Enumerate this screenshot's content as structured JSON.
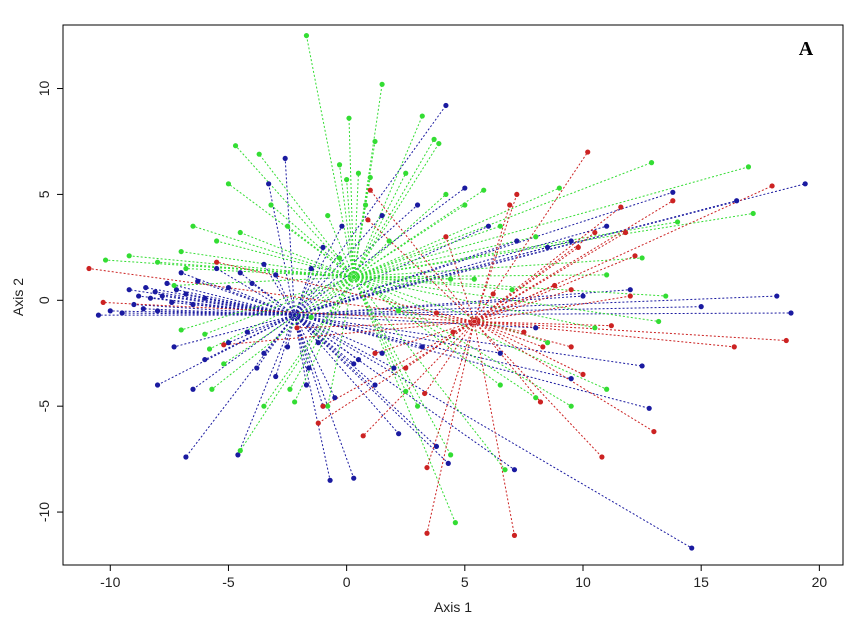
{
  "chart_data": {
    "type": "scatter",
    "panel_label": "A",
    "xlabel": "Axis 1",
    "ylabel": "Axis 2",
    "xlim": [
      -12,
      21
    ],
    "ylim": [
      -12.5,
      13
    ],
    "xticks": [
      -10,
      -5,
      0,
      5,
      10,
      15,
      20
    ],
    "yticks": [
      -10,
      -5,
      0,
      5,
      10
    ],
    "grid": false,
    "colors": {
      "blue": "#1a1aa0",
      "green": "#33dd33",
      "red": "#cc2222"
    },
    "series": [
      {
        "color_key": "blue",
        "centroid": [
          -2.2,
          -0.7
        ],
        "points": [
          [
            -10.5,
            -0.7
          ],
          [
            -10,
            -0.5
          ],
          [
            -9.5,
            -0.6
          ],
          [
            -9.2,
            0.5
          ],
          [
            -9,
            -0.2
          ],
          [
            -8.8,
            0.2
          ],
          [
            -8.6,
            -0.4
          ],
          [
            -8.5,
            0.6
          ],
          [
            -8.3,
            0.1
          ],
          [
            -8.1,
            0.4
          ],
          [
            -8,
            -0.5
          ],
          [
            -7.8,
            0.2
          ],
          [
            -7.6,
            0.8
          ],
          [
            -7.4,
            -0.1
          ],
          [
            -7.2,
            0.5
          ],
          [
            -7,
            1.3
          ],
          [
            -6.8,
            0.3
          ],
          [
            -6.5,
            -0.2
          ],
          [
            -6.3,
            0.9
          ],
          [
            -6,
            0.1
          ],
          [
            -5.5,
            1.5
          ],
          [
            -5,
            0.6
          ],
          [
            -4.5,
            1.3
          ],
          [
            -4,
            0.8
          ],
          [
            -3.5,
            1.7
          ],
          [
            -3,
            1.2
          ],
          [
            -2.6,
            6.7
          ],
          [
            -3.3,
            5.5
          ],
          [
            -1.5,
            1.5
          ],
          [
            -1,
            2.5
          ],
          [
            -0.2,
            3.5
          ],
          [
            1.5,
            4
          ],
          [
            3,
            4.5
          ],
          [
            4.2,
            9.2
          ],
          [
            5,
            5.3
          ],
          [
            6,
            3.5
          ],
          [
            7.2,
            2.8
          ],
          [
            8.5,
            2.5
          ],
          [
            9.5,
            2.8
          ],
          [
            11,
            3.5
          ],
          [
            13.8,
            5.1
          ],
          [
            16.5,
            4.7
          ],
          [
            19.4,
            5.5
          ],
          [
            18.2,
            0.2
          ],
          [
            18.8,
            -0.6
          ],
          [
            15,
            -0.3
          ],
          [
            12,
            0.5
          ],
          [
            10,
            0.2
          ],
          [
            8,
            -1.3
          ],
          [
            6.5,
            -2.5
          ],
          [
            12.5,
            -3.1
          ],
          [
            12.8,
            -5.1
          ],
          [
            9.5,
            -3.7
          ],
          [
            14.6,
            -11.7
          ],
          [
            7.1,
            -8
          ],
          [
            4.3,
            -7.7
          ],
          [
            3.8,
            -6.9
          ],
          [
            2.2,
            -6.3
          ],
          [
            1.2,
            -4
          ],
          [
            0.3,
            -3
          ],
          [
            -0.5,
            -4.6
          ],
          [
            -0.7,
            -8.5
          ],
          [
            0.3,
            -8.4
          ],
          [
            -1,
            -5
          ],
          [
            -1.7,
            -4
          ],
          [
            -3,
            -3.6
          ],
          [
            -3.8,
            -3.2
          ],
          [
            -4.6,
            -7.3
          ],
          [
            -6.8,
            -7.4
          ],
          [
            -6.5,
            -4.2
          ],
          [
            -8,
            -4
          ],
          [
            -7.3,
            -2.2
          ],
          [
            -6,
            -2.8
          ],
          [
            -5,
            -2
          ],
          [
            -4.2,
            -1.5
          ],
          [
            -3.5,
            -2.5
          ],
          [
            -1.6,
            -3.2
          ],
          [
            -2.5,
            -2.2
          ],
          [
            -1.2,
            -2
          ],
          [
            0.5,
            -2.8
          ],
          [
            1.5,
            -2.5
          ],
          [
            2,
            -3.2
          ],
          [
            3.2,
            -2.2
          ]
        ]
      },
      {
        "color_key": "green",
        "centroid": [
          0.3,
          1.1
        ],
        "points": [
          [
            -10.2,
            1.9
          ],
          [
            -9.2,
            2.1
          ],
          [
            -8,
            1.8
          ],
          [
            -7,
            2.3
          ],
          [
            -6.5,
            3.5
          ],
          [
            -5.5,
            2.8
          ],
          [
            -5,
            5.5
          ],
          [
            -4.7,
            7.3
          ],
          [
            -4.5,
            3.2
          ],
          [
            -3.7,
            6.9
          ],
          [
            -3.2,
            4.5
          ],
          [
            -2.5,
            3.5
          ],
          [
            -1.7,
            12.5
          ],
          [
            -0.8,
            4
          ],
          [
            -0.3,
            6.4
          ],
          [
            0,
            5.7
          ],
          [
            0.1,
            8.6
          ],
          [
            0.5,
            6
          ],
          [
            0.8,
            4.5
          ],
          [
            1,
            5.8
          ],
          [
            1.5,
            10.2
          ],
          [
            1.2,
            7.5
          ],
          [
            2.5,
            6
          ],
          [
            3.2,
            8.7
          ],
          [
            3.7,
            7.6
          ],
          [
            3.9,
            7.4
          ],
          [
            4.2,
            5
          ],
          [
            5,
            4.5
          ],
          [
            5.8,
            5.2
          ],
          [
            6.5,
            3.5
          ],
          [
            8,
            3
          ],
          [
            9,
            5.3
          ],
          [
            12.9,
            6.5
          ],
          [
            17,
            6.3
          ],
          [
            17.2,
            4.1
          ],
          [
            14,
            3.7
          ],
          [
            12.5,
            2
          ],
          [
            11,
            1.2
          ],
          [
            13.5,
            0.2
          ],
          [
            13.2,
            -1
          ],
          [
            10.5,
            -1.3
          ],
          [
            8.5,
            -2
          ],
          [
            11,
            -4.2
          ],
          [
            9.5,
            -5
          ],
          [
            8,
            -4.6
          ],
          [
            6.5,
            -4
          ],
          [
            6.7,
            -8
          ],
          [
            4.6,
            -10.5
          ],
          [
            4.4,
            -7.3
          ],
          [
            3,
            -5
          ],
          [
            2.5,
            -4.3
          ],
          [
            -0.8,
            -5
          ],
          [
            -2.4,
            -4.2
          ],
          [
            -2.2,
            -4.8
          ],
          [
            -3.5,
            -5
          ],
          [
            -4.5,
            -7.1
          ],
          [
            -5.7,
            -4.2
          ],
          [
            -5.2,
            -3
          ],
          [
            -5.8,
            -2.3
          ],
          [
            -6,
            -1.6
          ],
          [
            -7,
            -1.4
          ],
          [
            -7.3,
            0.7
          ],
          [
            -6.8,
            1.5
          ],
          [
            -1.5,
            -0.8
          ],
          [
            -0.3,
            2
          ],
          [
            1.8,
            2.8
          ],
          [
            2.2,
            -0.5
          ],
          [
            4.4,
            1
          ],
          [
            5.4,
            1
          ],
          [
            7,
            0.5
          ]
        ]
      },
      {
        "color_key": "red",
        "centroid": [
          5.4,
          -1.0
        ],
        "points": [
          [
            -10.9,
            1.5
          ],
          [
            -10.3,
            -0.1
          ],
          [
            -5.5,
            1.8
          ],
          [
            -5.2,
            -2.1
          ],
          [
            -2.1,
            -1.3
          ],
          [
            -1,
            -5
          ],
          [
            -1.2,
            -5.8
          ],
          [
            0.7,
            -6.4
          ],
          [
            1.2,
            -2.5
          ],
          [
            0.9,
            3.8
          ],
          [
            1,
            5.2
          ],
          [
            2.5,
            -3.2
          ],
          [
            3.3,
            -4.4
          ],
          [
            3.4,
            -7.9
          ],
          [
            3.4,
            -11
          ],
          [
            4.2,
            3
          ],
          [
            6.9,
            4.5
          ],
          [
            7.2,
            5
          ],
          [
            7.1,
            -11.1
          ],
          [
            8.3,
            -2.2
          ],
          [
            8.2,
            -4.8
          ],
          [
            9.5,
            0.5
          ],
          [
            9.8,
            2.5
          ],
          [
            10.2,
            7
          ],
          [
            10.5,
            3.2
          ],
          [
            10.8,
            -7.4
          ],
          [
            11.6,
            4.4
          ],
          [
            11.8,
            3.2
          ],
          [
            12.2,
            2.1
          ],
          [
            12,
            0.2
          ],
          [
            13,
            -6.2
          ],
          [
            13.8,
            4.7
          ],
          [
            16.4,
            -2.2
          ],
          [
            18.6,
            -1.9
          ],
          [
            18,
            5.4
          ],
          [
            9.5,
            -2.2
          ],
          [
            10,
            -3.5
          ],
          [
            6.2,
            0.3
          ],
          [
            7.5,
            -1.5
          ],
          [
            8.8,
            0.7
          ],
          [
            11.2,
            -1.2
          ],
          [
            4.5,
            -1.5
          ],
          [
            3.8,
            -0.6
          ]
        ]
      }
    ]
  }
}
